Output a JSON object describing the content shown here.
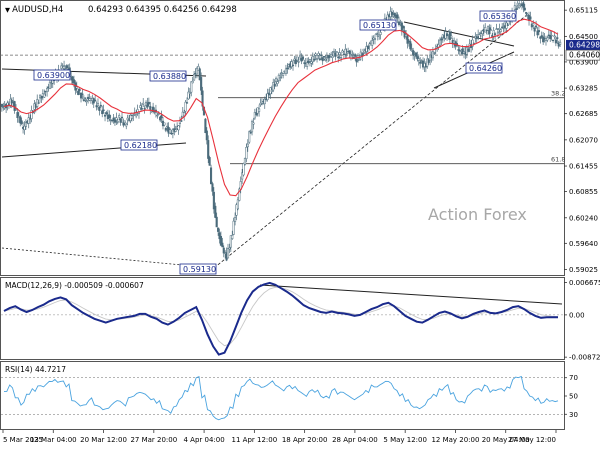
{
  "header": {
    "symbol_line": "AUDUSD,H4",
    "ohlc": [
      "0.64293",
      "0.64395",
      "0.64256",
      "0.64298"
    ]
  },
  "watermark": "Action Forex",
  "colors": {
    "candle": "#4a6a7a",
    "ema": "#e8323c",
    "macd": "#1a2a8c",
    "macd_signal": "#c8c8c8",
    "rsi": "#4aa3df",
    "label_border": "#1a2a8c",
    "price_box": "#1a2a8c",
    "price_box_text": "#ffffff"
  },
  "chart_data": [
    {
      "type": "candlestick",
      "panel": "main",
      "y_range": [
        0.5892,
        0.6526
      ],
      "y_ticks": [
        "0.65115",
        "0.64500",
        "0.63900",
        "0.63285",
        "0.62685",
        "0.62070",
        "0.61455",
        "0.60855",
        "0.60240",
        "0.59640",
        "0.59025"
      ],
      "current_price_label": "0.64298",
      "level_price_label": "0.64060",
      "level_value": 0.6406,
      "close_series": [
        0.6285,
        0.63,
        0.6265,
        0.6235,
        0.6255,
        0.6285,
        0.6305,
        0.632,
        0.6345,
        0.636,
        0.638,
        0.6372,
        0.6335,
        0.6315,
        0.63,
        0.6305,
        0.629,
        0.6275,
        0.626,
        0.625,
        0.6258,
        0.6245,
        0.6262,
        0.627,
        0.6285,
        0.629,
        0.6275,
        0.6265,
        0.624,
        0.6225,
        0.623,
        0.6255,
        0.63,
        0.635,
        0.638,
        0.626,
        0.614,
        0.602,
        0.596,
        0.593,
        0.599,
        0.607,
        0.615,
        0.622,
        0.6265,
        0.629,
        0.6305,
        0.633,
        0.635,
        0.6365,
        0.638,
        0.639,
        0.64,
        0.6385,
        0.6395,
        0.6405,
        0.6398,
        0.64,
        0.641,
        0.6405,
        0.6415,
        0.6408,
        0.6395,
        0.641,
        0.6425,
        0.6445,
        0.646,
        0.6485,
        0.6505,
        0.6495,
        0.647,
        0.644,
        0.641,
        0.6395,
        0.638,
        0.64,
        0.642,
        0.6445,
        0.6458,
        0.644,
        0.642,
        0.641,
        0.6425,
        0.6445,
        0.6458,
        0.647,
        0.6455,
        0.6465,
        0.647,
        0.6485,
        0.6515,
        0.653,
        0.6505,
        0.6478,
        0.646,
        0.644,
        0.645,
        0.6445,
        0.643
      ],
      "price_labels": [
        "0.63900",
        "0.63880",
        "0.62180",
        "0.59130",
        "0.65130",
        "0.65360",
        "0.64260"
      ],
      "fib_levels": [
        {
          "label": "38.2",
          "value": 0.6306
        },
        {
          "label": "61.8",
          "value": 0.6151
        }
      ]
    },
    {
      "type": "line",
      "panel": "macd",
      "header": "MACD(12,26,9) -0.000509 -0.000607",
      "y_range": [
        -0.0089,
        0.0072
      ],
      "y_ticks": [
        "0.006675",
        "0.00",
        "-0.008724"
      ],
      "macd_series": [
        0.0008,
        0.0014,
        0.0018,
        0.0011,
        0.0006,
        0.001,
        0.0016,
        0.0021,
        0.0028,
        0.0033,
        0.0036,
        0.0032,
        0.002,
        0.0012,
        0.0004,
        -0.0002,
        -0.0008,
        -0.0012,
        -0.0016,
        -0.0012,
        -0.0008,
        -0.0006,
        -0.0004,
        -0.0002,
        0.0002,
        0.0002,
        -0.0004,
        -0.0008,
        -0.0016,
        -0.002,
        -0.0014,
        -0.0006,
        0.0004,
        0.001,
        0.0016,
        -0.001,
        -0.004,
        -0.0065,
        -0.0082,
        -0.0078,
        -0.0055,
        -0.0025,
        0.0005,
        0.003,
        0.0048,
        0.0058,
        0.0063,
        0.0066,
        0.0062,
        0.0055,
        0.0048,
        0.004,
        0.003,
        0.002,
        0.0014,
        0.001,
        0.0006,
        0.0004,
        0.0007,
        0.0004,
        0.0003,
        0.0001,
        -0.0002,
        0.0,
        0.0006,
        0.0012,
        0.0016,
        0.0022,
        0.0025,
        0.0018,
        0.0008,
        -0.0002,
        -0.0008,
        -0.0014,
        -0.0016,
        -0.001,
        -0.0003,
        0.0004,
        0.0007,
        0.0003,
        -0.0003,
        -0.0007,
        -0.0004,
        0.0002,
        0.0006,
        0.0009,
        0.0004,
        0.0003,
        0.0006,
        0.001,
        0.0016,
        0.0018,
        0.0012,
        0.0004,
        -0.0002,
        -0.0006,
        -0.0005,
        -0.0005,
        -0.0005
      ]
    },
    {
      "type": "line",
      "panel": "rsi",
      "header": "RSI(14) 44.7217",
      "y_range": [
        15,
        85
      ],
      "y_ticks": [
        "70",
        "50",
        "30"
      ],
      "levels": [
        70,
        30
      ],
      "rsi_series": [
        55,
        62,
        48,
        40,
        52,
        58,
        61,
        60,
        66,
        68,
        66,
        60,
        45,
        42,
        40,
        45,
        40,
        38,
        36,
        40,
        45,
        42,
        48,
        50,
        54,
        52,
        46,
        42,
        36,
        34,
        38,
        46,
        56,
        64,
        70,
        48,
        35,
        28,
        24,
        26,
        38,
        52,
        60,
        66,
        64,
        62,
        60,
        64,
        62,
        58,
        60,
        58,
        56,
        52,
        55,
        54,
        50,
        50,
        56,
        52,
        54,
        50,
        46,
        50,
        56,
        62,
        60,
        64,
        66,
        58,
        50,
        44,
        40,
        38,
        38,
        46,
        52,
        58,
        60,
        52,
        46,
        44,
        50,
        56,
        58,
        62,
        54,
        56,
        58,
        60,
        68,
        70,
        58,
        50,
        45,
        42,
        47,
        45,
        44.7
      ]
    },
    {
      "type": "axis",
      "panel": "time",
      "x_labels": [
        "5 Mar 2025",
        "13 Mar 04:00",
        "20 Mar 12:00",
        "27 Mar 20:00",
        "4 Apr 04:00",
        "11 Apr 12:00",
        "18 Apr 20:00",
        "28 Apr 04:00",
        "5 May 12:00",
        "12 May 20:00",
        "20 May 04:00",
        "27 May 12:00"
      ]
    }
  ]
}
